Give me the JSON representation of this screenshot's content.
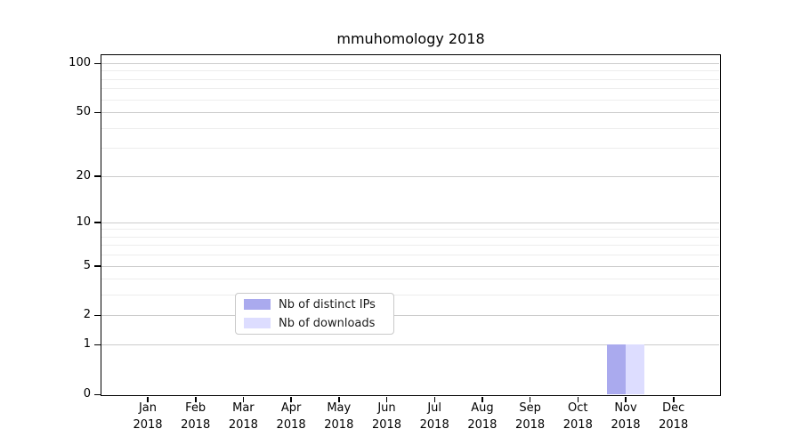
{
  "chart_data": {
    "type": "bar",
    "title": "mmuhomology 2018",
    "year_label": "2018",
    "categories": [
      "Jan",
      "Feb",
      "Mar",
      "Apr",
      "May",
      "Jun",
      "Jul",
      "Aug",
      "Sep",
      "Oct",
      "Nov",
      "Dec"
    ],
    "series": [
      {
        "name": "Nb of distinct IPs",
        "color": "#aaaaee",
        "values": [
          0,
          0,
          0,
          0,
          0,
          0,
          0,
          0,
          0,
          0,
          1,
          0
        ]
      },
      {
        "name": "Nb of downloads",
        "color": "#ddddff",
        "values": [
          0,
          0,
          0,
          0,
          0,
          0,
          0,
          0,
          0,
          0,
          1,
          0
        ]
      }
    ],
    "y_axis": {
      "scale": "log10(1+v)",
      "major_ticks": [
        0,
        1,
        2,
        5,
        10,
        20,
        50,
        100
      ],
      "minor_gridlines": [
        3,
        4,
        6,
        7,
        8,
        9,
        30,
        40,
        60,
        70,
        80,
        90
      ],
      "ylim": [
        0,
        112
      ]
    },
    "x_axis": {
      "tick_labels_line2": "2018"
    },
    "legend": {
      "position": "lower center"
    },
    "grid": "horizontal only",
    "colors": {
      "spine": "#000000",
      "major_grid": "#cccccc",
      "minor_grid": "#ededed"
    }
  }
}
